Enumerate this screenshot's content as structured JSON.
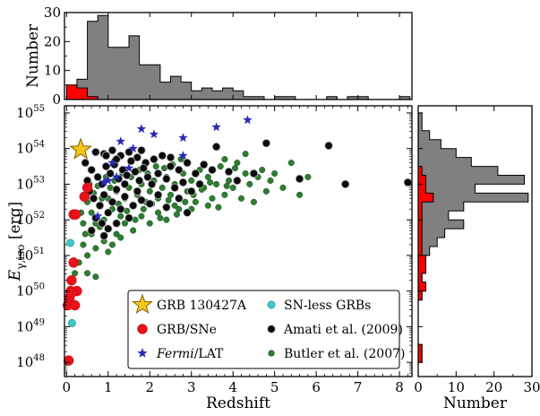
{
  "colors": {
    "grey_hist": "#808080",
    "red_hist": "#ff0000",
    "grb130427a": "#f5c518",
    "grb_sne": "#e8141c",
    "fermi_lat": "#2a2ab5",
    "sn_less": "#40c8c8",
    "amati": "#0a0a0a",
    "butler": "#2e7d32"
  },
  "chart_data": [
    {
      "panel": "main-scatter",
      "type": "scatter",
      "xlabel": "Redshift",
      "ylabel": "E_{γ,iso} [erg]",
      "xlim": [
        -0.05,
        8.3
      ],
      "ylim_log10": [
        47.6,
        55.2
      ],
      "xticks": [
        0,
        1,
        2,
        3,
        4,
        5,
        6,
        7,
        8
      ],
      "ytick_exponents": [
        48,
        49,
        50,
        51,
        52,
        53,
        54,
        55
      ],
      "ytick_labels": [
        "10^48",
        "10^49",
        "10^50",
        "10^51",
        "10^52",
        "10^53",
        "10^54",
        "10^55"
      ],
      "xtick_labels": [
        "0",
        "1",
        "2",
        "3",
        "4",
        "5",
        "6",
        "7",
        "8"
      ],
      "legend_placement": "lower-right",
      "series": [
        {
          "name": "GRB 130427A",
          "marker": "star-large",
          "points": [
            [
              0.34,
              53.97
            ]
          ]
        },
        {
          "name": "SN-less GRBs",
          "marker": "circle-small",
          "points": [
            [
              0.09,
              51.35
            ],
            [
              0.13,
              49.1
            ]
          ]
        },
        {
          "name": "GRB/SNe",
          "marker": "circle-large",
          "points": [
            [
              0.17,
              52.15
            ],
            [
              0.22,
              52.15
            ],
            [
              0.17,
              50.8
            ],
            [
              0.1,
              50.0
            ],
            [
              0.07,
              49.8
            ],
            [
              0.03,
              49.6
            ],
            [
              0.12,
              50.3
            ],
            [
              0.25,
              50.0
            ],
            [
              0.2,
              49.6
            ],
            [
              0.05,
              48.05
            ],
            [
              0.43,
              52.65
            ],
            [
              0.5,
              52.9
            ],
            [
              0.12,
              49.95
            ]
          ]
        },
        {
          "name": "Fermi/LAT",
          "marker": "star-small",
          "points": [
            [
              1.3,
              54.2
            ],
            [
              1.6,
              54.0
            ],
            [
              2.1,
              54.4
            ],
            [
              1.8,
              54.55
            ],
            [
              2.8,
              54.3
            ],
            [
              3.6,
              54.6
            ],
            [
              4.35,
              54.8
            ],
            [
              1.2,
              53.2
            ],
            [
              1.0,
              53.1
            ],
            [
              0.9,
              53.05
            ],
            [
              2.8,
              53.8
            ],
            [
              1.5,
              53.45
            ],
            [
              1.1,
              53.6
            ],
            [
              0.75,
              52.1
            ]
          ]
        },
        {
          "name": "Amati et al. (2009)",
          "marker": "circle-medium",
          "points": [
            [
              0.7,
              53.9
            ],
            [
              0.9,
              53.85
            ],
            [
              1.1,
              53.95
            ],
            [
              1.3,
              53.8
            ],
            [
              1.5,
              53.9
            ],
            [
              1.7,
              53.75
            ],
            [
              1.9,
              53.6
            ],
            [
              2.1,
              53.7
            ],
            [
              2.3,
              53.8
            ],
            [
              2.5,
              53.5
            ],
            [
              2.7,
              53.4
            ],
            [
              2.9,
              53.6
            ],
            [
              3.1,
              53.3
            ],
            [
              3.5,
              53.4
            ],
            [
              3.6,
              54.05
            ],
            [
              4.1,
              53.1
            ],
            [
              4.5,
              53.3
            ],
            [
              4.8,
              54.15
            ],
            [
              5.6,
              53.15
            ],
            [
              6.3,
              54.08
            ],
            [
              6.7,
              53.0
            ],
            [
              8.2,
              53.05
            ],
            [
              0.6,
              53.4
            ],
            [
              0.75,
              53.2
            ],
            [
              0.85,
              53.0
            ],
            [
              0.95,
              53.5
            ],
            [
              1.05,
              53.3
            ],
            [
              1.15,
              53.55
            ],
            [
              1.25,
              53.15
            ],
            [
              1.35,
              53.4
            ],
            [
              1.45,
              53.25
            ],
            [
              1.55,
              53.65
            ],
            [
              1.65,
              53.35
            ],
            [
              1.75,
              53.1
            ],
            [
              1.85,
              53.45
            ],
            [
              1.95,
              53.2
            ],
            [
              2.05,
              53.0
            ],
            [
              2.2,
              53.3
            ],
            [
              2.4,
              53.15
            ],
            [
              2.6,
              52.9
            ],
            [
              2.8,
              53.05
            ],
            [
              3.0,
              52.8
            ],
            [
              3.2,
              53.0
            ],
            [
              0.55,
              52.8
            ],
            [
              0.65,
              52.6
            ],
            [
              0.8,
              52.4
            ],
            [
              0.9,
              52.7
            ],
            [
              1.0,
              52.2
            ],
            [
              1.1,
              52.5
            ],
            [
              1.2,
              52.85
            ],
            [
              1.3,
              52.3
            ],
            [
              1.4,
              52.65
            ],
            [
              1.6,
              52.4
            ],
            [
              1.7,
              52.8
            ],
            [
              1.8,
              52.55
            ],
            [
              2.0,
              52.45
            ],
            [
              2.2,
              52.7
            ],
            [
              2.4,
              52.35
            ],
            [
              2.7,
              52.6
            ],
            [
              0.7,
              52.05
            ],
            [
              0.85,
              51.9
            ],
            [
              1.0,
              51.75
            ],
            [
              1.2,
              51.9
            ],
            [
              0.6,
              51.7
            ],
            [
              0.9,
              51.55
            ],
            [
              1.5,
              52.05
            ],
            [
              0.45,
              53.6
            ],
            [
              0.5,
              53.1
            ],
            [
              1.8,
              53.95
            ],
            [
              2.5,
              53.75
            ],
            [
              3.3,
              53.55
            ],
            [
              3.9,
              53.35
            ],
            [
              0.95,
              53.8
            ],
            [
              1.2,
              53.7
            ],
            [
              1.4,
              53.0
            ],
            [
              2.9,
              52.2
            ]
          ]
        },
        {
          "name": "Butler et al. (2007)",
          "marker": "circle-small",
          "points": [
            [
              0.5,
              52.5
            ],
            [
              0.6,
              52.2
            ],
            [
              0.7,
              51.9
            ],
            [
              0.8,
              52.4
            ],
            [
              0.9,
              52.0
            ],
            [
              1.0,
              52.6
            ],
            [
              1.1,
              52.3
            ],
            [
              1.2,
              52.8
            ],
            [
              1.3,
              52.1
            ],
            [
              1.4,
              52.6
            ],
            [
              1.5,
              52.9
            ],
            [
              1.6,
              52.4
            ],
            [
              1.7,
              52.7
            ],
            [
              1.8,
              53.0
            ],
            [
              1.9,
              52.5
            ],
            [
              2.0,
              52.8
            ],
            [
              2.1,
              53.1
            ],
            [
              2.2,
              52.6
            ],
            [
              2.3,
              52.9
            ],
            [
              2.4,
              53.2
            ],
            [
              2.5,
              52.7
            ],
            [
              2.6,
              53.0
            ],
            [
              2.7,
              52.3
            ],
            [
              2.8,
              53.3
            ],
            [
              2.9,
              52.8
            ],
            [
              3.0,
              53.1
            ],
            [
              3.1,
              52.5
            ],
            [
              3.2,
              53.4
            ],
            [
              3.3,
              52.9
            ],
            [
              3.4,
              53.2
            ],
            [
              3.5,
              52.6
            ],
            [
              3.6,
              53.0
            ],
            [
              3.7,
              53.5
            ],
            [
              3.8,
              52.7
            ],
            [
              3.9,
              53.1
            ],
            [
              4.0,
              52.9
            ],
            [
              4.1,
              53.6
            ],
            [
              4.2,
              52.6
            ],
            [
              4.3,
              53.3
            ],
            [
              4.4,
              53.0
            ],
            [
              4.5,
              52.5
            ],
            [
              4.6,
              53.2
            ],
            [
              4.7,
              53.4
            ],
            [
              4.8,
              52.8
            ],
            [
              4.9,
              53.1
            ],
            [
              5.0,
              53.3
            ],
            [
              5.2,
              52.9
            ],
            [
              5.4,
              53.6
            ],
            [
              5.6,
              52.7
            ],
            [
              5.8,
              53.2
            ],
            [
              4.3,
              53.85
            ],
            [
              3.8,
              53.7
            ],
            [
              0.4,
              51.3
            ],
            [
              0.5,
              51.0
            ],
            [
              0.6,
              51.6
            ],
            [
              0.7,
              51.2
            ],
            [
              0.8,
              51.8
            ],
            [
              0.9,
              51.4
            ],
            [
              1.0,
              51.1
            ],
            [
              0.3,
              50.8
            ],
            [
              0.5,
              50.5
            ],
            [
              0.7,
              50.4
            ],
            [
              0.4,
              51.9
            ],
            [
              1.2,
              51.6
            ],
            [
              1.4,
              51.9
            ],
            [
              1.6,
              51.7
            ],
            [
              1.8,
              52.1
            ],
            [
              2.0,
              51.9
            ],
            [
              2.2,
              52.2
            ],
            [
              2.4,
              52.0
            ],
            [
              2.6,
              52.4
            ],
            [
              3.0,
              52.3
            ],
            [
              3.4,
              52.4
            ],
            [
              0.55,
              53.0
            ],
            [
              0.75,
              52.95
            ],
            [
              0.95,
              53.2
            ],
            [
              1.15,
              53.1
            ],
            [
              1.35,
              53.3
            ],
            [
              1.55,
              53.2
            ],
            [
              1.75,
              53.4
            ],
            [
              1.95,
              53.3
            ],
            [
              2.15,
              53.5
            ],
            [
              2.35,
              53.45
            ],
            [
              2.55,
              53.55
            ],
            [
              2.75,
              53.7
            ],
            [
              0.65,
              52.75
            ],
            [
              0.85,
              52.6
            ],
            [
              1.05,
              52.9
            ],
            [
              1.25,
              52.45
            ],
            [
              1.45,
              52.25
            ],
            [
              1.65,
              52.0
            ],
            [
              1.85,
              52.3
            ],
            [
              2.05,
              52.45
            ],
            [
              2.25,
              52.05
            ],
            [
              2.45,
              52.55
            ],
            [
              2.65,
              52.15
            ],
            [
              2.85,
              52.5
            ],
            [
              3.05,
              52.7
            ],
            [
              3.25,
              52.85
            ],
            [
              3.45,
              53.05
            ],
            [
              3.65,
              52.35
            ],
            [
              3.85,
              52.95
            ],
            [
              4.05,
              53.45
            ],
            [
              0.35,
              52.2
            ],
            [
              0.45,
              51.6
            ],
            [
              1.1,
              51.3
            ],
            [
              1.3,
              51.5
            ],
            [
              0.2,
              50.5
            ]
          ]
        }
      ]
    },
    {
      "panel": "top-histogram",
      "type": "histogram",
      "ylabel": "Number",
      "ylim": [
        0,
        30
      ],
      "yticks": [
        0,
        10,
        20,
        30
      ],
      "ytick_labels": [
        "0",
        "10",
        "20",
        "30"
      ],
      "bin_width": 0.25,
      "bin_start": 0,
      "series": [
        {
          "color_key": "grey_hist",
          "counts": [
            1,
            7,
            27,
            29,
            18,
            18,
            22,
            12,
            12,
            6,
            8,
            6,
            3,
            4,
            3,
            4,
            3,
            1,
            1,
            0,
            1,
            1,
            0,
            0,
            0,
            1,
            0,
            1,
            1,
            0,
            0,
            0,
            1
          ]
        },
        {
          "color_key": "red_hist",
          "counts": [
            5,
            4,
            1,
            0
          ]
        }
      ]
    },
    {
      "panel": "right-histogram",
      "type": "histogram-horizontal",
      "xlabel": "Number",
      "xlim": [
        0,
        30
      ],
      "xticks": [
        0,
        10,
        20,
        30
      ],
      "xtick_labels": [
        "0",
        "10",
        "20",
        "30"
      ],
      "bin_width_log10": 0.25,
      "bin_start_log10": 47.75,
      "series": [
        {
          "color_key": "grey_hist",
          "counts": [
            0,
            1,
            1,
            0,
            0,
            0,
            0,
            0,
            1,
            2,
            1,
            2,
            2,
            3,
            5,
            7,
            12,
            8,
            12,
            29,
            15,
            28,
            21,
            14,
            10,
            6,
            3,
            1,
            1
          ]
        },
        {
          "color_key": "red_hist",
          "counts": [
            0,
            1,
            1,
            0,
            0,
            0,
            0,
            0,
            1,
            2,
            1,
            2,
            2,
            1,
            1,
            1,
            1,
            1,
            1,
            4,
            2,
            2,
            1,
            0,
            0,
            0,
            0,
            0,
            0
          ]
        }
      ]
    }
  ],
  "legend": {
    "items": [
      {
        "label": "GRB 130427A",
        "marker": "star-large",
        "color_key": "grb130427a"
      },
      {
        "label": "SN-less GRBs",
        "marker": "circle-small",
        "color_key": "sn_less"
      },
      {
        "label": "GRB/SNe",
        "marker": "circle-large",
        "color_key": "grb_sne"
      },
      {
        "label": "Amati et al. (2009)",
        "marker": "circle-medium",
        "color_key": "amati"
      },
      {
        "label": "Fermi/LAT",
        "marker": "star-small",
        "color_key": "fermi_lat"
      },
      {
        "label": "Butler et al. (2007)",
        "marker": "circle-small",
        "color_key": "butler"
      }
    ]
  }
}
